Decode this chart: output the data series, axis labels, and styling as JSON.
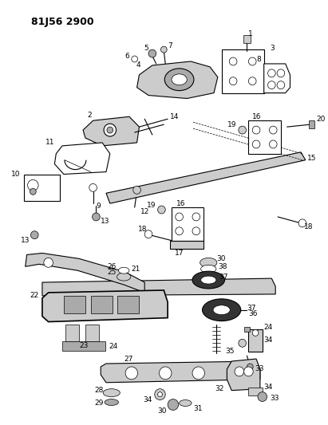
{
  "title": "81J56 2900",
  "bg": "#ffffff",
  "lc": "#000000",
  "title_fs": 9,
  "label_fs": 6.5,
  "fig_w": 4.11,
  "fig_h": 5.33,
  "dpi": 100
}
